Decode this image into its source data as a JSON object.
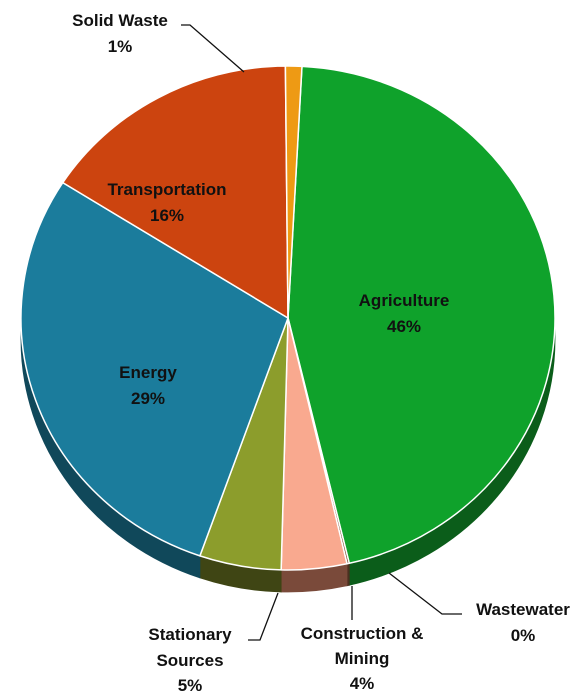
{
  "chart_data": {
    "type": "pie",
    "style": "3d",
    "title": "",
    "slices": [
      {
        "name": "Agriculture",
        "value": 46,
        "label": "46%",
        "color": "#0fa22b",
        "side": "#0b5d1a"
      },
      {
        "name": "Wastewater",
        "value": 0,
        "label": "0%",
        "color": "#7a5030",
        "side": "#4a3020"
      },
      {
        "name": "Construction & Mining",
        "label_lines": [
          "Construction &",
          "Mining"
        ],
        "value": 4,
        "label": "4%",
        "color": "#f9a98f",
        "side": "#7a4a3a"
      },
      {
        "name": "Stationary Sources",
        "label_lines": [
          "Stationary",
          "Sources"
        ],
        "value": 5,
        "label": "5%",
        "color": "#8c9d2c",
        "side": "#3f4514"
      },
      {
        "name": "Energy",
        "value": 29,
        "label": "29%",
        "color": "#1b7c9c",
        "side": "#10485a"
      },
      {
        "name": "Transportation",
        "value": 16,
        "label": "16%",
        "color": "#cc440f",
        "side": "#6e2608"
      },
      {
        "name": "Solid Waste",
        "value": 1,
        "label": "1%",
        "color": "#ee9a14",
        "side": "#7a500a"
      }
    ]
  }
}
